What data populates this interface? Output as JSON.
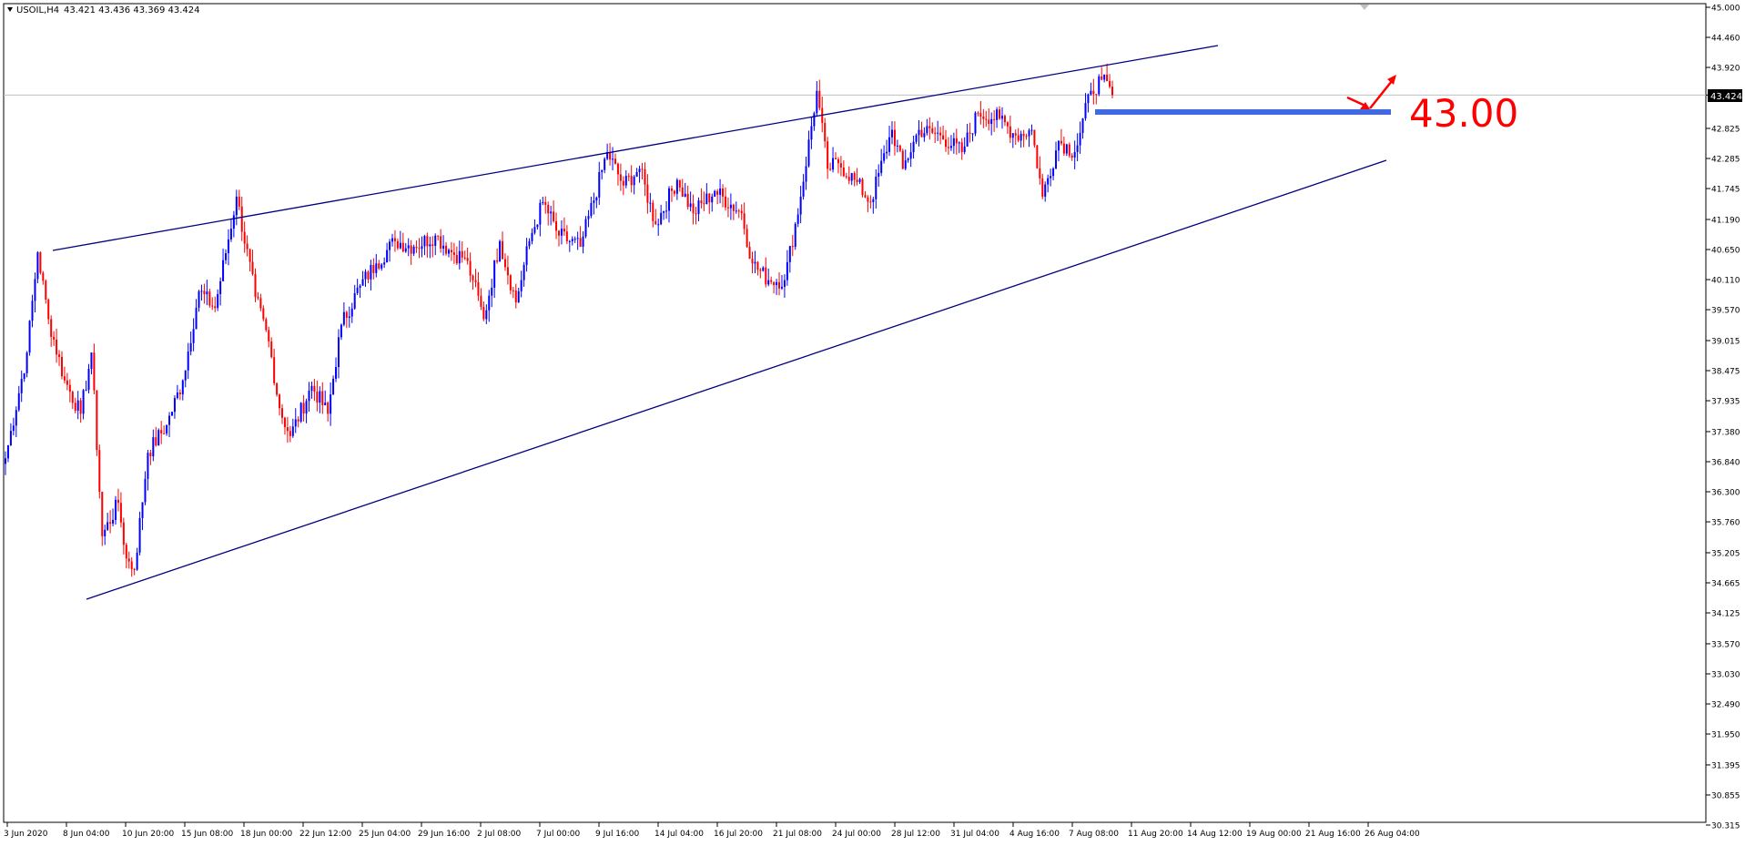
{
  "header": {
    "symbol": "USOIL,H4",
    "ohlc": "43.421 43.436 43.369 43.424"
  },
  "price_marker": "43.424",
  "annotation": "43.00",
  "colors": {
    "bull": "#0000ff",
    "bear": "#ff0000",
    "trendline": "#000080",
    "support": "#4169e1",
    "arrow": "#ff0000",
    "annotation": "#ff0000",
    "price_line": "#c0c0c0",
    "marker_bg": "#000000",
    "marker_text": "#ffffff"
  },
  "chart_data": {
    "type": "candlestick",
    "y_ticks": [
      "45.000",
      "44.460",
      "43.920",
      "43.424",
      "42.825",
      "42.285",
      "41.745",
      "41.190",
      "40.650",
      "40.110",
      "39.570",
      "39.015",
      "38.475",
      "37.935",
      "37.380",
      "36.840",
      "36.300",
      "35.760",
      "35.205",
      "34.665",
      "34.125",
      "33.570",
      "33.030",
      "32.490",
      "31.950",
      "31.395",
      "30.855",
      "30.315"
    ],
    "ylim": [
      30.315,
      45.0
    ],
    "x_ticks": [
      "3 Jun 2020",
      "8 Jun 04:00",
      "10 Jun 20:00",
      "15 Jun 08:00",
      "18 Jun 00:00",
      "22 Jun 12:00",
      "25 Jun 04:00",
      "29 Jun 16:00",
      "2 Jul 08:00",
      "7 Jul 00:00",
      "9 Jul 16:00",
      "14 Jul 04:00",
      "16 Jul 20:00",
      "21 Jul 08:00",
      "24 Jul 00:00",
      "28 Jul 12:00",
      "31 Jul 04:00",
      "4 Aug 16:00",
      "7 Aug 08:00",
      "11 Aug 20:00",
      "14 Aug 12:00",
      "19 Aug 00:00",
      "21 Aug 16:00",
      "26 Aug 04:00"
    ],
    "anchors": [
      [
        0,
        36.9
      ],
      [
        8,
        38.8
      ],
      [
        12,
        40.6
      ],
      [
        16,
        39.4
      ],
      [
        22,
        38.3
      ],
      [
        28,
        37.7
      ],
      [
        32,
        38.8
      ],
      [
        36,
        35.5
      ],
      [
        42,
        36.1
      ],
      [
        45,
        35.1
      ],
      [
        48,
        34.9
      ],
      [
        53,
        37.0
      ],
      [
        60,
        37.5
      ],
      [
        66,
        38.3
      ],
      [
        72,
        39.9
      ],
      [
        78,
        39.6
      ],
      [
        86,
        41.6
      ],
      [
        93,
        39.8
      ],
      [
        98,
        39.0
      ],
      [
        102,
        37.8
      ],
      [
        106,
        37.3
      ],
      [
        114,
        38.2
      ],
      [
        120,
        37.7
      ],
      [
        125,
        39.3
      ],
      [
        132,
        40.0
      ],
      [
        138,
        40.4
      ],
      [
        145,
        40.8
      ],
      [
        152,
        40.7
      ],
      [
        160,
        40.9
      ],
      [
        166,
        40.6
      ],
      [
        171,
        40.5
      ],
      [
        174,
        40.1
      ],
      [
        178,
        39.4
      ],
      [
        184,
        40.8
      ],
      [
        190,
        39.7
      ],
      [
        195,
        40.8
      ],
      [
        200,
        41.5
      ],
      [
        206,
        40.9
      ],
      [
        214,
        40.7
      ],
      [
        224,
        42.4
      ],
      [
        230,
        41.8
      ],
      [
        236,
        42.1
      ],
      [
        242,
        41.1
      ],
      [
        250,
        41.9
      ],
      [
        256,
        41.3
      ],
      [
        264,
        41.7
      ],
      [
        274,
        41.3
      ],
      [
        278,
        40.4
      ],
      [
        284,
        40.1
      ],
      [
        290,
        40.1
      ],
      [
        296,
        41.6
      ],
      [
        302,
        43.5
      ],
      [
        306,
        42.1
      ],
      [
        310,
        42.2
      ],
      [
        316,
        41.9
      ],
      [
        322,
        41.5
      ],
      [
        330,
        42.8
      ],
      [
        334,
        42.1
      ],
      [
        340,
        42.8
      ],
      [
        348,
        42.7
      ],
      [
        356,
        42.4
      ],
      [
        362,
        43.1
      ],
      [
        370,
        43.0
      ],
      [
        376,
        42.7
      ],
      [
        382,
        42.8
      ],
      [
        386,
        41.6
      ],
      [
        392,
        42.6
      ],
      [
        398,
        42.4
      ],
      [
        404,
        43.5
      ],
      [
        408,
        43.7
      ],
      [
        412,
        43.424
      ]
    ]
  }
}
